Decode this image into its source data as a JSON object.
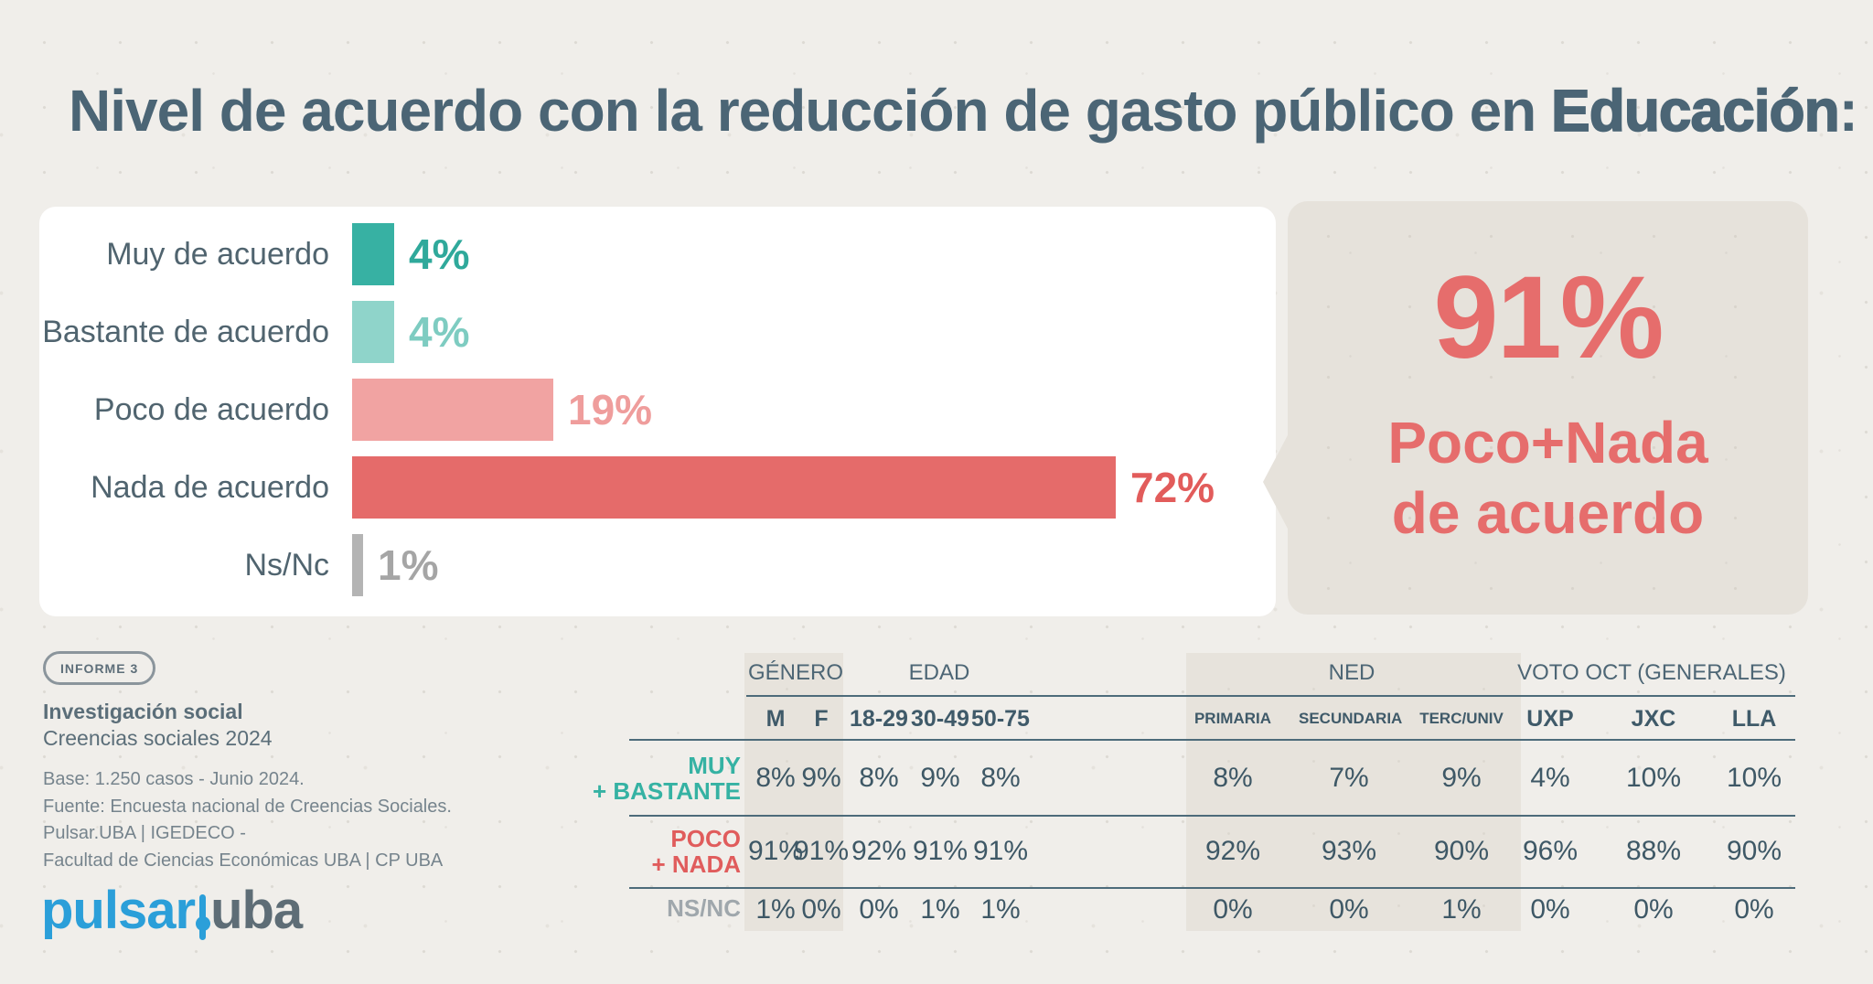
{
  "title": {
    "prefix": "Nivel de acuerdo con la reducción de gasto público en ",
    "emphasis": "Educación",
    "suffix": ":"
  },
  "colors": {
    "background": "#f0eeea",
    "panel": "#ffffff",
    "callout_bg": "#e6e2db",
    "title_text": "#4b6575",
    "rule": "#4d6b7a",
    "accent_red": "#e66d6c",
    "accent_teal": "#37b1a3",
    "logo_blue": "#2b9fd9"
  },
  "chart_data": {
    "type": "bar",
    "orientation": "horizontal",
    "unit": "%",
    "xlim": [
      0,
      100
    ],
    "grid": false,
    "legend": false,
    "categories": [
      "Muy de acuerdo",
      "Bastante de acuerdo",
      "Poco de acuerdo",
      "Nada de acuerdo",
      "Ns/Nc"
    ],
    "values": [
      4,
      4,
      19,
      72,
      1
    ],
    "rows": [
      {
        "label": "Muy de acuerdo",
        "value": 4,
        "display": "4%",
        "bar_color": "#37b1a3",
        "value_color": "#2fa99b"
      },
      {
        "label": "Bastante de acuerdo",
        "value": 4,
        "display": "4%",
        "bar_color": "#8fd4ca",
        "value_color": "#7eccc1"
      },
      {
        "label": "Poco de acuerdo",
        "value": 19,
        "display": "19%",
        "bar_color": "#f1a3a2",
        "value_color": "#ef9d9c"
      },
      {
        "label": "Nada de acuerdo",
        "value": 72,
        "display": "72%",
        "bar_color": "#e56b6a",
        "value_color": "#e25c5b"
      },
      {
        "label": "Ns/Nc",
        "value": 1,
        "display": "1%",
        "bar_color": "#b4b4b4",
        "value_color": "#a5a5a5"
      }
    ]
  },
  "callout": {
    "value": "91%",
    "line1": "Poco+Nada",
    "line2": "de acuerdo"
  },
  "info": {
    "badge": "INFORME 3",
    "program": "Investigación social",
    "edition": "Creencias sociales 2024",
    "notes": [
      "Base: 1.250 casos - Junio 2024.",
      "Fuente: Encuesta nacional de Creencias Sociales.",
      "Pulsar.UBA | IGEDECO -",
      "Facultad de Ciencias Económicas UBA | CP UBA"
    ]
  },
  "logo": {
    "part1": "pulsar",
    "part2": "uba"
  },
  "table": {
    "groups": [
      {
        "label": "GÉNERO"
      },
      {
        "label": "EDAD"
      },
      {
        "label": "NED"
      },
      {
        "label": "VOTO OCT (GENERALES)"
      }
    ],
    "columns": [
      "M",
      "F",
      "18-29",
      "30-49",
      "50-75",
      "PRIMARIA",
      "SECUNDARIA",
      "TERC/UNIV",
      "UXP",
      "JXC",
      "LLA"
    ],
    "rows": [
      {
        "label_line1": "MUY",
        "label_line2": "+ BASTANTE",
        "color": "#35b2a3",
        "values": [
          "8%",
          "9%",
          "8%",
          "9%",
          "8%",
          "8%",
          "7%",
          "9%",
          "4%",
          "10%",
          "10%"
        ]
      },
      {
        "label_line1": "POCO",
        "label_line2": "+ NADA",
        "color": "#e05c5c",
        "values": [
          "91%",
          "91%",
          "92%",
          "91%",
          "91%",
          "92%",
          "93%",
          "90%",
          "96%",
          "88%",
          "90%"
        ]
      },
      {
        "label_line1": "NS/NC",
        "label_line2": "",
        "color": "#9fa7ac",
        "values": [
          "1%",
          "0%",
          "0%",
          "1%",
          "1%",
          "0%",
          "0%",
          "1%",
          "0%",
          "0%",
          "0%"
        ]
      }
    ]
  }
}
